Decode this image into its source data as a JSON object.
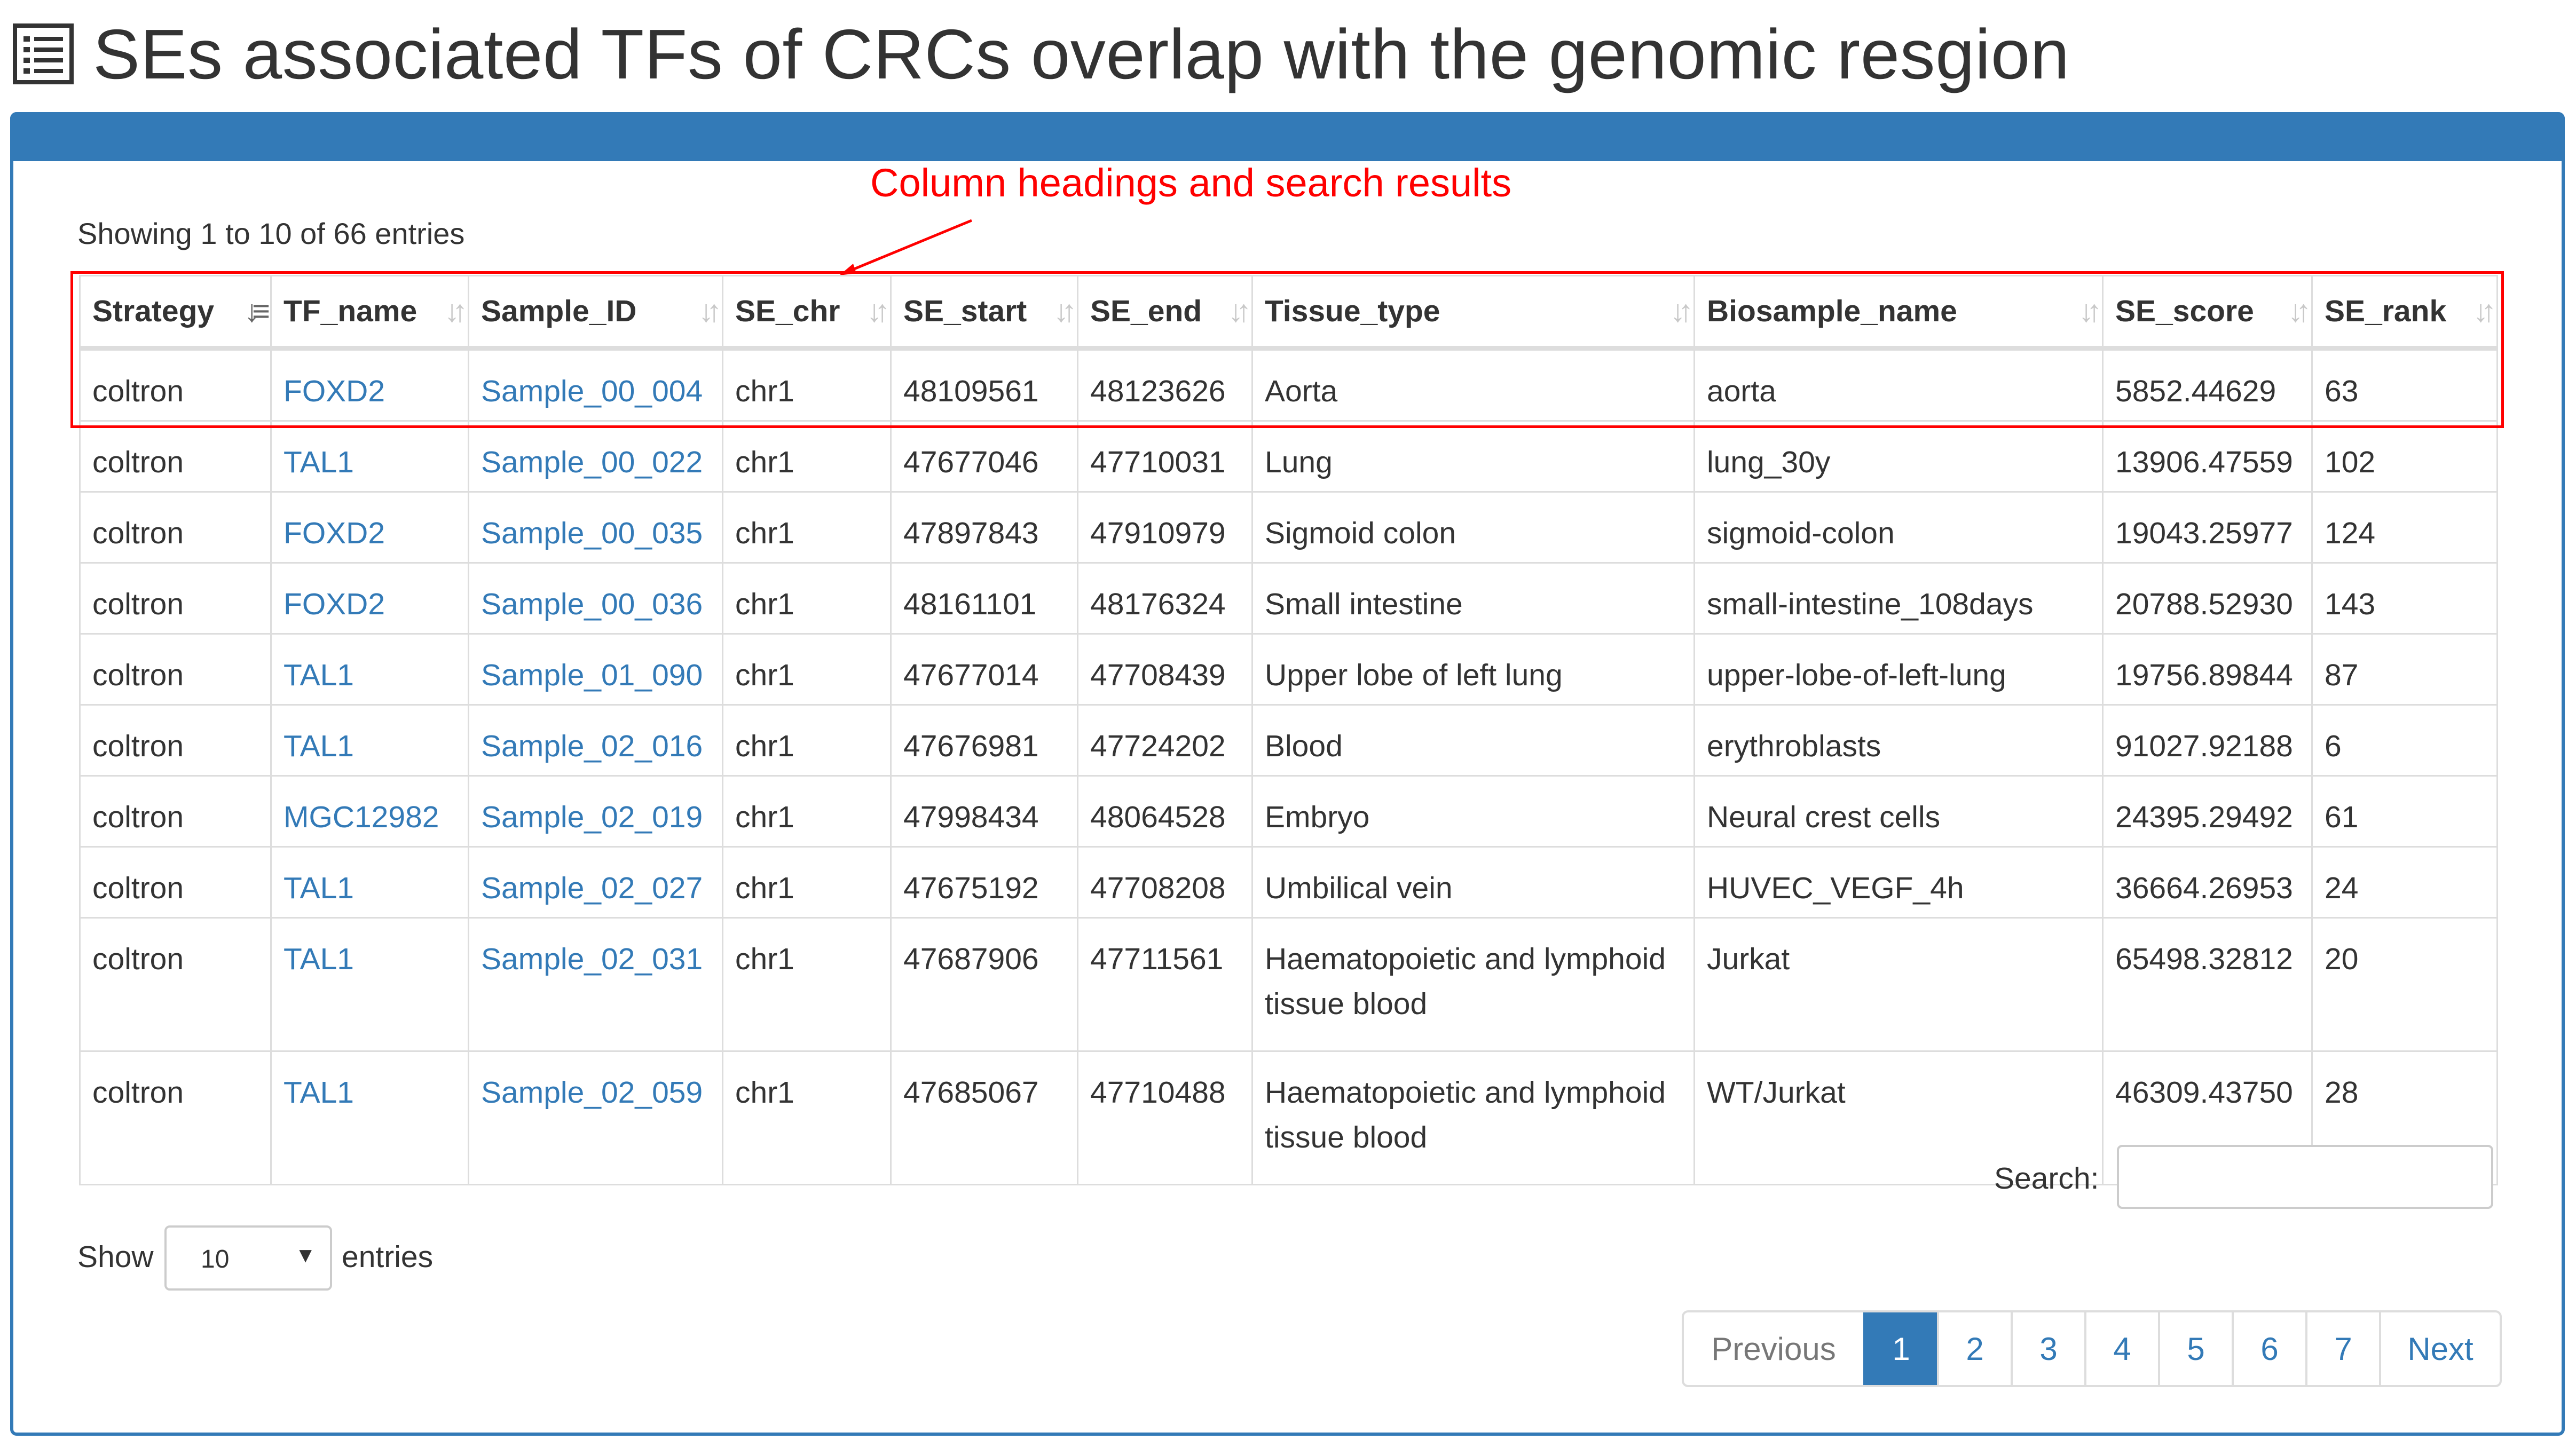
{
  "page": {
    "title": "SEs associated TFs of CRCs overlap with the genomic resgion"
  },
  "annotation": {
    "text": "Column headings and search results",
    "color": "#ff0000"
  },
  "table_info": "Showing 1 to 10 of 66 entries",
  "columns": [
    "Strategy",
    "TF_name",
    "Sample_ID",
    "SE_chr",
    "SE_start",
    "SE_end",
    "Tissue_type",
    "Biosample_name",
    "SE_score",
    "SE_rank"
  ],
  "sorted_column": "Strategy",
  "rows": [
    [
      "coltron",
      "FOXD2",
      "Sample_00_004",
      "chr1",
      "48109561",
      "48123626",
      "Aorta",
      "aorta",
      "5852.44629",
      "63"
    ],
    [
      "coltron",
      "TAL1",
      "Sample_00_022",
      "chr1",
      "47677046",
      "47710031",
      "Lung",
      "lung_30y",
      "13906.47559",
      "102"
    ],
    [
      "coltron",
      "FOXD2",
      "Sample_00_035",
      "chr1",
      "47897843",
      "47910979",
      "Sigmoid colon",
      "sigmoid-colon",
      "19043.25977",
      "124"
    ],
    [
      "coltron",
      "FOXD2",
      "Sample_00_036",
      "chr1",
      "48161101",
      "48176324",
      "Small intestine",
      "small-intestine_108days",
      "20788.52930",
      "143"
    ],
    [
      "coltron",
      "TAL1",
      "Sample_01_090",
      "chr1",
      "47677014",
      "47708439",
      "Upper lobe of left lung",
      "upper-lobe-of-left-lung",
      "19756.89844",
      "87"
    ],
    [
      "coltron",
      "TAL1",
      "Sample_02_016",
      "chr1",
      "47676981",
      "47724202",
      "Blood",
      "erythroblasts",
      "91027.92188",
      "6"
    ],
    [
      "coltron",
      "MGC12982",
      "Sample_02_019",
      "chr1",
      "47998434",
      "48064528",
      "Embryo",
      "Neural crest cells",
      "24395.29492",
      "61"
    ],
    [
      "coltron",
      "TAL1",
      "Sample_02_027",
      "chr1",
      "47675192",
      "47708208",
      "Umbilical vein",
      "HUVEC_VEGF_4h",
      "36664.26953",
      "24"
    ],
    [
      "coltron",
      "TAL1",
      "Sample_02_031",
      "chr1",
      "47687906",
      "47711561",
      "Haematopoietic and lymphoid tissue blood",
      "Jurkat",
      "65498.32812",
      "20"
    ],
    [
      "coltron",
      "TAL1",
      "Sample_02_059",
      "chr1",
      "47685067",
      "47710488",
      "Haematopoietic and lymphoid tissue blood",
      "WT/Jurkat",
      "46309.43750",
      "28"
    ]
  ],
  "search": {
    "label": "Search:",
    "value": ""
  },
  "length_menu": {
    "prefix": "Show",
    "selected": "10",
    "suffix": "entries"
  },
  "pagination": {
    "previous": "Previous",
    "pages": [
      "1",
      "2",
      "3",
      "4",
      "5",
      "6",
      "7"
    ],
    "current": "1",
    "next": "Next"
  },
  "colors": {
    "primary": "#337ab7",
    "link": "#337ab7",
    "highlight": "#ff0000"
  },
  "icons": {
    "title": "list-icon",
    "sort_active": "sort-ascending-icon",
    "sort_inactive": "sort-icon",
    "select_caret": "caret-down-icon"
  }
}
